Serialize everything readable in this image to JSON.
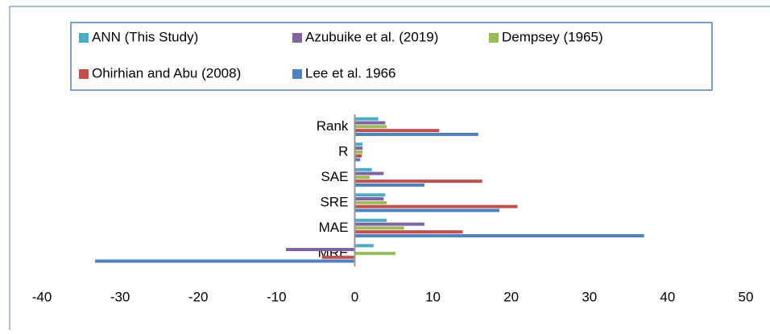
{
  "chart_data": {
    "type": "hbar",
    "categories": [
      "Rank",
      "R",
      "SAE",
      "SRE",
      "MAE",
      "MRE"
    ],
    "series": [
      {
        "name": "ANN (This Study)",
        "color": "#4bacc6",
        "values": [
          3.0,
          1.0,
          2.2,
          3.9,
          4.1,
          2.4
        ]
      },
      {
        "name": "Azubuike et al. (2019)",
        "color": "#8064a2",
        "values": [
          3.9,
          1.0,
          3.7,
          3.7,
          8.9,
          -8.8
        ]
      },
      {
        "name": "Dempsey (1965)",
        "color": "#9bbb59",
        "values": [
          4.1,
          1.0,
          1.9,
          4.1,
          6.3,
          5.2
        ]
      },
      {
        "name": "Ohirhian and Abu (2008)",
        "color": "#c0504d",
        "values": [
          10.8,
          0.9,
          16.3,
          20.8,
          13.8,
          -4.2
        ]
      },
      {
        "name": "Lee et al. 1966",
        "color": "#4f81bd",
        "values": [
          15.8,
          0.7,
          8.9,
          18.5,
          37.0,
          -33.2
        ]
      }
    ],
    "xlim": [
      -40,
      50
    ],
    "xticks": [
      -40,
      -30,
      -20,
      -10,
      0,
      10,
      20,
      30,
      40,
      50
    ],
    "legend": "top"
  }
}
